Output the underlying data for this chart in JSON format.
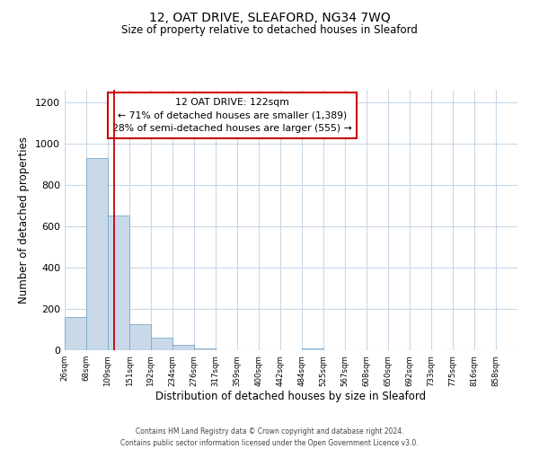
{
  "title": "12, OAT DRIVE, SLEAFORD, NG34 7WQ",
  "subtitle": "Size of property relative to detached houses in Sleaford",
  "xlabel": "Distribution of detached houses by size in Sleaford",
  "ylabel": "Number of detached properties",
  "bar_labels": [
    "26sqm",
    "68sqm",
    "109sqm",
    "151sqm",
    "192sqm",
    "234sqm",
    "276sqm",
    "317sqm",
    "359sqm",
    "400sqm",
    "442sqm",
    "484sqm",
    "525sqm",
    "567sqm",
    "608sqm",
    "650sqm",
    "692sqm",
    "733sqm",
    "775sqm",
    "816sqm",
    "858sqm"
  ],
  "bar_values": [
    160,
    930,
    650,
    125,
    62,
    27,
    10,
    0,
    0,
    0,
    0,
    10,
    0,
    0,
    0,
    0,
    0,
    0,
    0,
    0,
    0
  ],
  "bar_color": "#c9d9ea",
  "bar_edge_color": "#7aaac8",
  "property_line_color": "#cc0000",
  "annotation_title": "12 OAT DRIVE: 122sqm",
  "annotation_line1": "← 71% of detached houses are smaller (1,389)",
  "annotation_line2": "28% of semi-detached houses are larger (555) →",
  "annotation_box_color": "#ffffff",
  "annotation_box_edge": "#cc0000",
  "ylim": [
    0,
    1260
  ],
  "yticks": [
    0,
    200,
    400,
    600,
    800,
    1000,
    1200
  ],
  "bin_edges": [
    26,
    68,
    109,
    151,
    192,
    234,
    276,
    317,
    359,
    400,
    442,
    484,
    525,
    567,
    608,
    650,
    692,
    733,
    775,
    816,
    858,
    900
  ],
  "background_color": "#ffffff",
  "grid_color": "#c8d8e8",
  "footer_line1": "Contains HM Land Registry data © Crown copyright and database right 2024.",
  "footer_line2": "Contains public sector information licensed under the Open Government Licence v3.0."
}
